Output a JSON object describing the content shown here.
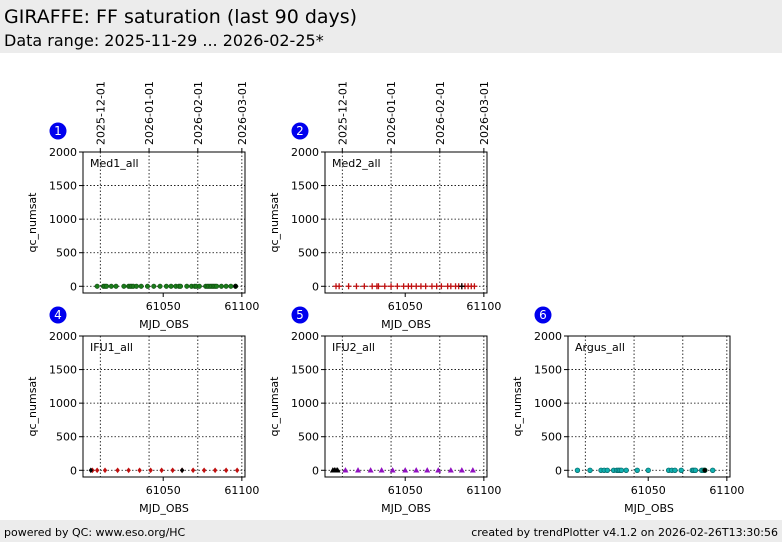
{
  "header": {
    "title": "GIRAFFE: FF saturation (last 90 days)",
    "subtitle": "Data range: 2025-11-29 ... 2026-02-25*"
  },
  "footer": {
    "left": "powered by QC: www.eso.org/HC",
    "right": "created by trendPlotter v4.1.2 on 2026-02-26T13:30:56"
  },
  "date_ticks": [
    {
      "label": "2025-12-01",
      "mjd": 61010
    },
    {
      "label": "2026-01-01",
      "mjd": 61041
    },
    {
      "label": "2026-02-01",
      "mjd": 61072
    },
    {
      "label": "2026-03-01",
      "mjd": 61100
    }
  ],
  "chart_data": [
    {
      "type": "scatter",
      "id": "1",
      "label": "Med1_all",
      "xlabel": "MJD_OBS",
      "ylabel": "qc_numsat",
      "xlim": [
        60999,
        61102
      ],
      "ylim": [
        -100,
        2000
      ],
      "xticks": [
        61050,
        61100
      ],
      "yticks": [
        0,
        500,
        1000,
        1500,
        2000
      ],
      "grid": true,
      "marker": "circle",
      "color": "#1a7a1a",
      "series": [
        {
          "x": [
            61008,
            61012,
            61013,
            61014,
            61017,
            61020,
            61025,
            61028,
            61029,
            61030,
            61031,
            61033,
            61036,
            61040,
            61044,
            61048,
            61052,
            61055,
            61058,
            61060,
            61061,
            61065,
            61068,
            61070,
            61071,
            61073,
            61077,
            61078,
            61079,
            61080,
            61081,
            61082,
            61083,
            61084,
            61087,
            61090,
            61093,
            61096
          ],
          "y": [
            0,
            0,
            0,
            0,
            0,
            0,
            0,
            0,
            0,
            0,
            0,
            0,
            0,
            0,
            0,
            0,
            0,
            0,
            0,
            0,
            0,
            0,
            0,
            0,
            0,
            0,
            0,
            0,
            0,
            0,
            0,
            0,
            0,
            0,
            0,
            0,
            0,
            0
          ]
        }
      ],
      "highlight": {
        "x": [
          61096
        ],
        "y": [
          0
        ],
        "color": "#000000"
      }
    },
    {
      "type": "scatter",
      "id": "2",
      "label": "Med2_all",
      "xlabel": "MJD_OBS",
      "ylabel": "qc_numsat",
      "xlim": [
        60999,
        61102
      ],
      "ylim": [
        -100,
        2000
      ],
      "xticks": [
        61050,
        61100
      ],
      "yticks": [
        0,
        500,
        1000,
        1500,
        2000
      ],
      "grid": true,
      "marker": "plus",
      "color": "#c01010",
      "series": [
        {
          "x": [
            61006,
            61008,
            61014,
            61019,
            61024,
            61029,
            61032,
            61033,
            61037,
            61041,
            61045,
            61049,
            61052,
            61054,
            61057,
            61060,
            61063,
            61067,
            61070,
            61073,
            61077,
            61079,
            61082,
            61084,
            61086,
            61088,
            61090,
            61092,
            61094
          ],
          "y": [
            0,
            0,
            0,
            0,
            0,
            0,
            0,
            0,
            0,
            0,
            0,
            0,
            0,
            0,
            0,
            0,
            0,
            0,
            0,
            0,
            0,
            0,
            0,
            0,
            0,
            0,
            0,
            0,
            0
          ]
        }
      ],
      "highlight": {
        "x": [
          61086
        ],
        "y": [
          0
        ],
        "color": "#000000"
      }
    },
    {
      "type": "scatter",
      "id": "4",
      "label": "IFU1_all",
      "xlabel": "MJD_OBS",
      "ylabel": "qc_numsat",
      "xlim": [
        60999,
        61102
      ],
      "ylim": [
        -100,
        2000
      ],
      "xticks": [
        61050,
        61100
      ],
      "yticks": [
        0,
        500,
        1000,
        1500,
        2000
      ],
      "grid": true,
      "marker": "diamond",
      "color": "#c01010",
      "series": [
        {
          "x": [
            61005,
            61008,
            61013,
            61021,
            61028,
            61035,
            61042,
            61049,
            61056,
            61062,
            61069,
            61076,
            61083,
            61090,
            61097
          ],
          "y": [
            0,
            0,
            0,
            0,
            0,
            0,
            0,
            0,
            0,
            0,
            0,
            0,
            0,
            0,
            0
          ]
        }
      ],
      "highlight": {
        "x": [
          61004,
          61062
        ],
        "y": [
          0,
          0
        ],
        "color": "#000000"
      }
    },
    {
      "type": "scatter",
      "id": "5",
      "label": "IFU2_all",
      "xlabel": "MJD_OBS",
      "ylabel": "qc_numsat",
      "xlim": [
        60999,
        61102
      ],
      "ylim": [
        -100,
        2000
      ],
      "xticks": [
        61050,
        61100
      ],
      "yticks": [
        0,
        500,
        1000,
        1500,
        2000
      ],
      "grid": true,
      "marker": "triangle",
      "color": "#9010c0",
      "series": [
        {
          "x": [
            61012,
            61020,
            61028,
            61035,
            61042,
            61050,
            61057,
            61064,
            61071,
            61079,
            61086,
            61093
          ],
          "y": [
            0,
            0,
            0,
            0,
            0,
            0,
            0,
            0,
            0,
            0,
            0,
            0
          ]
        }
      ],
      "highlight": {
        "x": [
          61004,
          61005,
          61006,
          61007
        ],
        "y": [
          0,
          0,
          0,
          0
        ],
        "color": "#000000"
      }
    },
    {
      "type": "scatter",
      "id": "6",
      "label": "Argus_all",
      "xlabel": "MJD_OBS",
      "ylabel": "qc_numsat",
      "xlim": [
        60999,
        61102
      ],
      "ylim": [
        -100,
        2000
      ],
      "xticks": [
        61050,
        61100
      ],
      "yticks": [
        0,
        500,
        1000,
        1500,
        2000
      ],
      "grid": true,
      "marker": "circle-open",
      "color": "#10b0b0",
      "series": [
        {
          "x": [
            61005,
            61013,
            61020,
            61022,
            61024,
            61028,
            61030,
            61031,
            61032,
            61033,
            61036,
            61043,
            61050,
            61063,
            61065,
            61067,
            61071,
            61078,
            61079,
            61080,
            61084,
            61085,
            61086,
            61091
          ],
          "y": [
            0,
            0,
            0,
            0,
            0,
            0,
            0,
            0,
            0,
            0,
            0,
            0,
            0,
            0,
            0,
            0,
            0,
            0,
            0,
            0,
            0,
            0,
            0,
            0
          ]
        }
      ],
      "highlight": {
        "x": [
          61086
        ],
        "y": [
          0
        ],
        "color": "#000000"
      }
    }
  ]
}
